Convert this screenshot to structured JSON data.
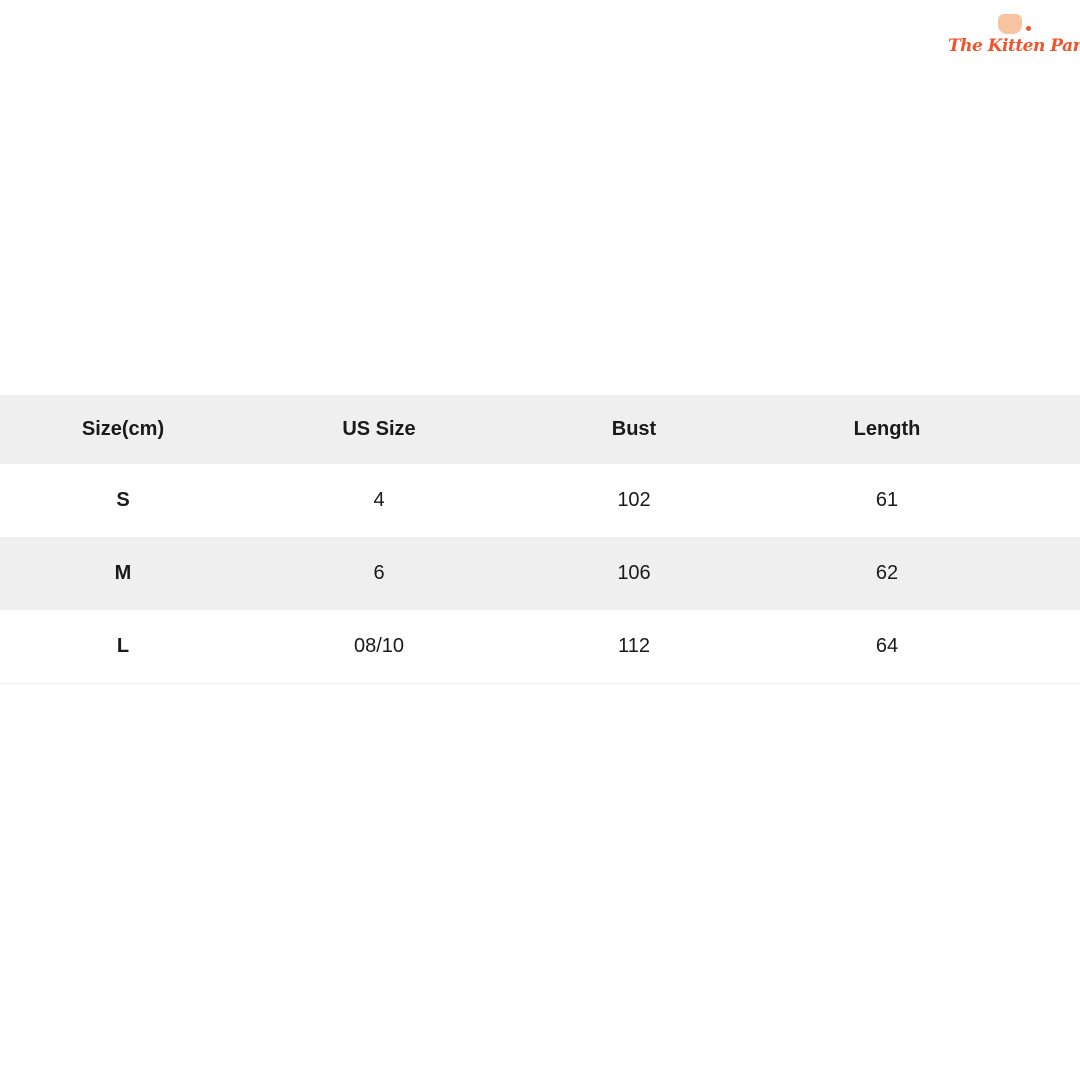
{
  "logo": {
    "text": "The Kitten Park",
    "color": "#f0542c"
  },
  "table": {
    "headers": [
      "Size(cm)",
      "US Size",
      "Bust",
      "Length"
    ],
    "rows": [
      [
        "S",
        "4",
        "102",
        "61"
      ],
      [
        "M",
        "6",
        "106",
        "62"
      ],
      [
        "L",
        "08/10",
        "112",
        "64"
      ]
    ],
    "shade_color": "#efefef"
  }
}
